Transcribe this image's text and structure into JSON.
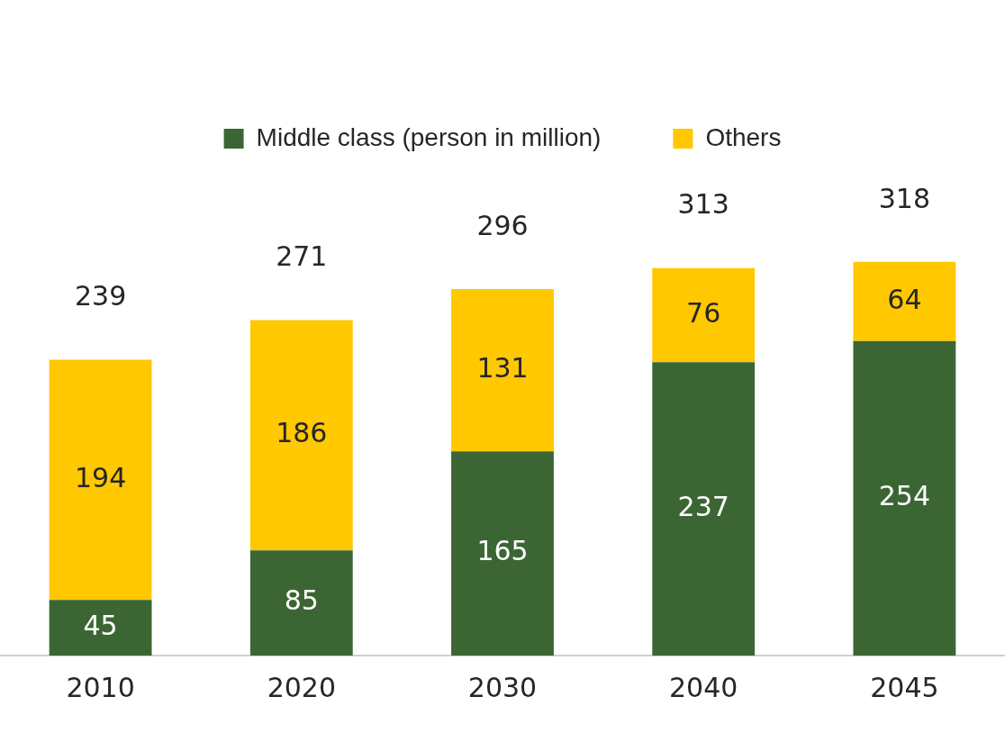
{
  "chart_data": {
    "type": "bar",
    "stacked": true,
    "data_labels": true,
    "legend": "top",
    "grid": false,
    "categories": [
      "2010",
      "2020",
      "2030",
      "2040",
      "2045"
    ],
    "series": [
      {
        "name": "Middle class (person in million)",
        "color": "#3b6633",
        "values": [
          45,
          85,
          165,
          237,
          254
        ]
      },
      {
        "name": "Others",
        "color": "#ffc800",
        "values": [
          194,
          186,
          131,
          76,
          64
        ]
      }
    ],
    "totals": [
      "239",
      "271",
      "296",
      "313",
      "318"
    ]
  }
}
